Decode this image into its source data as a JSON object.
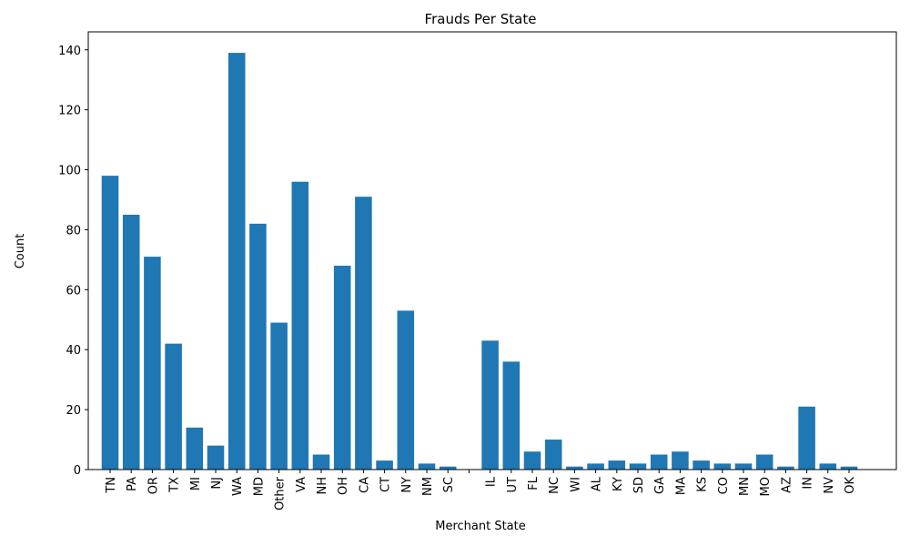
{
  "chart_data": {
    "type": "bar",
    "title": "Frauds Per State",
    "x_label": "Merchant State",
    "y_label": "Count",
    "categories": [
      "TN",
      "PA",
      "OR",
      "TX",
      "MI",
      "NJ",
      "WA",
      "MD",
      "Other",
      "VA",
      "NH",
      "OH",
      "CA",
      "CT",
      "NY",
      "NM",
      "SC",
      null,
      "IL",
      "UT",
      "FL",
      "NC",
      "WI",
      "AL",
      "KY",
      "SD",
      "GA",
      "MA",
      "KS",
      "CO",
      "MN",
      "MO",
      "AZ",
      "IN",
      "NV",
      "OK"
    ],
    "values": [
      98,
      85,
      71,
      42,
      14,
      8,
      139,
      82,
      49,
      96,
      5,
      68,
      91,
      3,
      53,
      2,
      1,
      0,
      43,
      36,
      6,
      10,
      1,
      2,
      3,
      2,
      5,
      6,
      3,
      2,
      2,
      5,
      1,
      21,
      2,
      1
    ],
    "color": "#1f77b4",
    "ylim": [
      0,
      146
    ],
    "yticks": [
      0,
      20,
      40,
      60,
      80,
      100,
      120,
      140
    ],
    "grid": false
  }
}
